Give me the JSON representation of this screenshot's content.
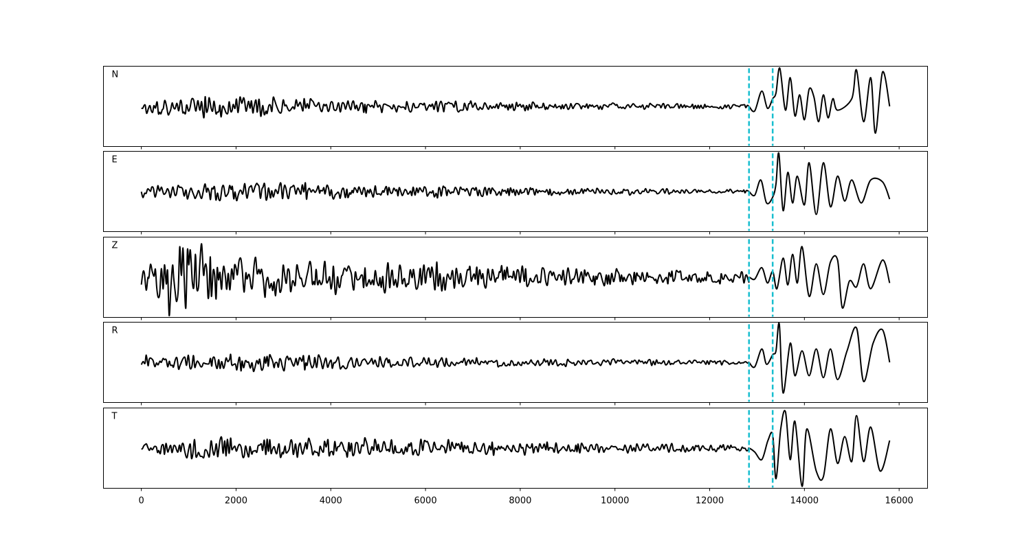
{
  "chart_data": {
    "type": "line",
    "xlim": [
      -800,
      16600
    ],
    "xticks": [
      0,
      2000,
      4000,
      6000,
      8000,
      10000,
      12000,
      14000,
      16000
    ],
    "xtick_labels": [
      "0",
      "2000",
      "4000",
      "6000",
      "8000",
      "10000",
      "12000",
      "14000",
      "16000"
    ],
    "n_samples": 15800,
    "marker_color": "#17becf",
    "trace_color": "#000000",
    "grid": false,
    "markers": [
      12830,
      13330
    ],
    "panels": [
      {
        "label": "N",
        "ylim": [
          -1.05,
          1.05
        ],
        "noise_envelope": [
          [
            0,
            0.2
          ],
          [
            2000,
            0.22
          ],
          [
            5000,
            0.13
          ],
          [
            9000,
            0.08
          ],
          [
            12700,
            0.05
          ]
        ],
        "signal_points": [
          [
            12830,
            0.0
          ],
          [
            12950,
            -0.12
          ],
          [
            13100,
            0.4
          ],
          [
            13220,
            -0.05
          ],
          [
            13330,
            0.2
          ],
          [
            13400,
            0.35
          ],
          [
            13480,
            1.0
          ],
          [
            13600,
            -0.1
          ],
          [
            13700,
            0.75
          ],
          [
            13800,
            -0.25
          ],
          [
            13900,
            0.3
          ],
          [
            14000,
            -0.35
          ],
          [
            14100,
            0.45
          ],
          [
            14200,
            0.25
          ],
          [
            14300,
            -0.4
          ],
          [
            14400,
            0.3
          ],
          [
            14500,
            -0.3
          ],
          [
            14600,
            0.2
          ],
          [
            14700,
            -0.1
          ],
          [
            15000,
            0.2
          ],
          [
            15100,
            0.95
          ],
          [
            15250,
            -0.4
          ],
          [
            15400,
            0.75
          ],
          [
            15500,
            -0.7
          ],
          [
            15650,
            0.9
          ],
          [
            15800,
            0.0
          ]
        ]
      },
      {
        "label": "E",
        "ylim": [
          -1.05,
          1.05
        ],
        "noise_envelope": [
          [
            0,
            0.12
          ],
          [
            2500,
            0.2
          ],
          [
            5000,
            0.14
          ],
          [
            9000,
            0.08
          ],
          [
            12700,
            0.04
          ]
        ],
        "signal_points": [
          [
            12830,
            0.0
          ],
          [
            12950,
            -0.1
          ],
          [
            13080,
            0.3
          ],
          [
            13200,
            -0.3
          ],
          [
            13330,
            -0.15
          ],
          [
            13400,
            0.2
          ],
          [
            13460,
            1.0
          ],
          [
            13550,
            -0.5
          ],
          [
            13650,
            0.5
          ],
          [
            13750,
            -0.3
          ],
          [
            13850,
            0.4
          ],
          [
            14000,
            -0.35
          ],
          [
            14100,
            0.75
          ],
          [
            14250,
            -0.6
          ],
          [
            14400,
            0.75
          ],
          [
            14550,
            -0.4
          ],
          [
            14700,
            0.4
          ],
          [
            14850,
            -0.25
          ],
          [
            15000,
            0.3
          ],
          [
            15200,
            -0.3
          ],
          [
            15400,
            0.3
          ],
          [
            15650,
            0.25
          ],
          [
            15800,
            -0.2
          ]
        ]
      },
      {
        "label": "Z",
        "ylim": [
          -1.05,
          1.05
        ],
        "noise_envelope": [
          [
            0,
            0.3
          ],
          [
            900,
            0.8
          ],
          [
            1500,
            0.55
          ],
          [
            3000,
            0.35
          ],
          [
            6000,
            0.3
          ],
          [
            9000,
            0.2
          ],
          [
            12700,
            0.12
          ]
        ],
        "spikes": [
          [
            590,
            -1.0
          ],
          [
            940,
            -0.8
          ]
        ],
        "signal_points": [
          [
            12830,
            0.0
          ],
          [
            12950,
            -0.05
          ],
          [
            13100,
            0.25
          ],
          [
            13220,
            -0.15
          ],
          [
            13330,
            0.15
          ],
          [
            13420,
            -0.3
          ],
          [
            13550,
            0.5
          ],
          [
            13650,
            -0.2
          ],
          [
            13750,
            0.6
          ],
          [
            13850,
            -0.15
          ],
          [
            13950,
            0.8
          ],
          [
            14100,
            -0.5
          ],
          [
            14250,
            0.35
          ],
          [
            14400,
            -0.45
          ],
          [
            14550,
            0.4
          ],
          [
            14700,
            0.45
          ],
          [
            14800,
            -0.8
          ],
          [
            14950,
            -0.1
          ],
          [
            15100,
            -0.25
          ],
          [
            15250,
            0.35
          ],
          [
            15400,
            -0.3
          ],
          [
            15650,
            0.45
          ],
          [
            15800,
            -0.15
          ]
        ]
      },
      {
        "label": "R",
        "ylim": [
          -1.05,
          1.05
        ],
        "noise_envelope": [
          [
            0,
            0.14
          ],
          [
            2500,
            0.2
          ],
          [
            5000,
            0.12
          ],
          [
            9000,
            0.09
          ],
          [
            12700,
            0.05
          ]
        ],
        "signal_points": [
          [
            12830,
            0.0
          ],
          [
            12950,
            -0.12
          ],
          [
            13100,
            0.35
          ],
          [
            13200,
            -0.05
          ],
          [
            13330,
            0.2
          ],
          [
            13400,
            0.3
          ],
          [
            13470,
            1.0
          ],
          [
            13550,
            -0.8
          ],
          [
            13700,
            0.5
          ],
          [
            13800,
            -0.35
          ],
          [
            13950,
            0.3
          ],
          [
            14100,
            -0.35
          ],
          [
            14250,
            0.35
          ],
          [
            14400,
            -0.4
          ],
          [
            14550,
            0.35
          ],
          [
            14700,
            -0.45
          ],
          [
            14900,
            0.3
          ],
          [
            15100,
            0.9
          ],
          [
            15250,
            -0.5
          ],
          [
            15450,
            0.5
          ],
          [
            15650,
            0.85
          ],
          [
            15800,
            0.0
          ]
        ]
      },
      {
        "label": "T",
        "ylim": [
          -1.05,
          1.05
        ],
        "noise_envelope": [
          [
            0,
            0.12
          ],
          [
            1500,
            0.25
          ],
          [
            4000,
            0.2
          ],
          [
            6500,
            0.17
          ],
          [
            9000,
            0.11
          ],
          [
            12700,
            0.07
          ]
        ],
        "signal_points": [
          [
            12830,
            0.0
          ],
          [
            12950,
            -0.1
          ],
          [
            13100,
            -0.3
          ],
          [
            13230,
            0.2
          ],
          [
            13330,
            0.35
          ],
          [
            13400,
            -0.8
          ],
          [
            13500,
            0.5
          ],
          [
            13600,
            0.95
          ],
          [
            13700,
            -0.3
          ],
          [
            13800,
            0.7
          ],
          [
            13950,
            -1.0
          ],
          [
            14050,
            0.5
          ],
          [
            14250,
            -0.6
          ],
          [
            14400,
            -0.75
          ],
          [
            14550,
            0.5
          ],
          [
            14700,
            -0.4
          ],
          [
            14850,
            0.3
          ],
          [
            15000,
            -0.35
          ],
          [
            15100,
            0.85
          ],
          [
            15250,
            -0.35
          ],
          [
            15400,
            0.55
          ],
          [
            15600,
            -0.6
          ],
          [
            15800,
            0.2
          ]
        ]
      }
    ]
  }
}
